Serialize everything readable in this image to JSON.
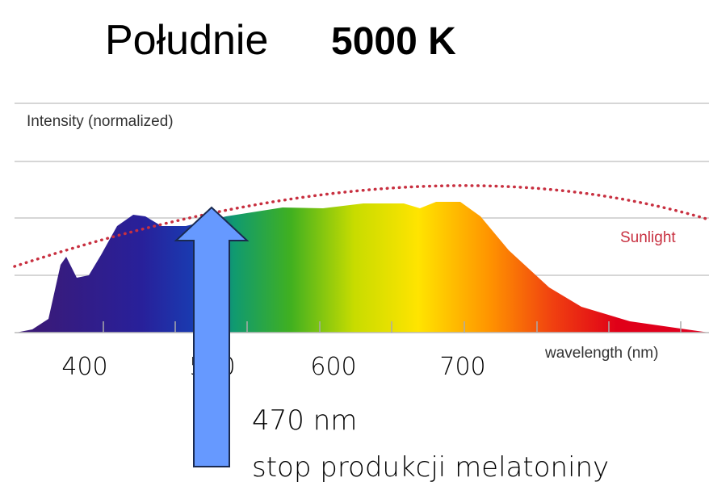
{
  "title": {
    "text": "Południe",
    "emphasis": "5000 K"
  },
  "chart": {
    "y_label": "Intensity (normalized)",
    "x_label": "wavelength (nm)",
    "reference_label": "Sunlight",
    "x_tick_labels": [
      "400",
      "500",
      "600",
      "700"
    ]
  },
  "annotation": {
    "wavelength": "470 nm",
    "effect": "stop produkcji melatoniny"
  }
}
